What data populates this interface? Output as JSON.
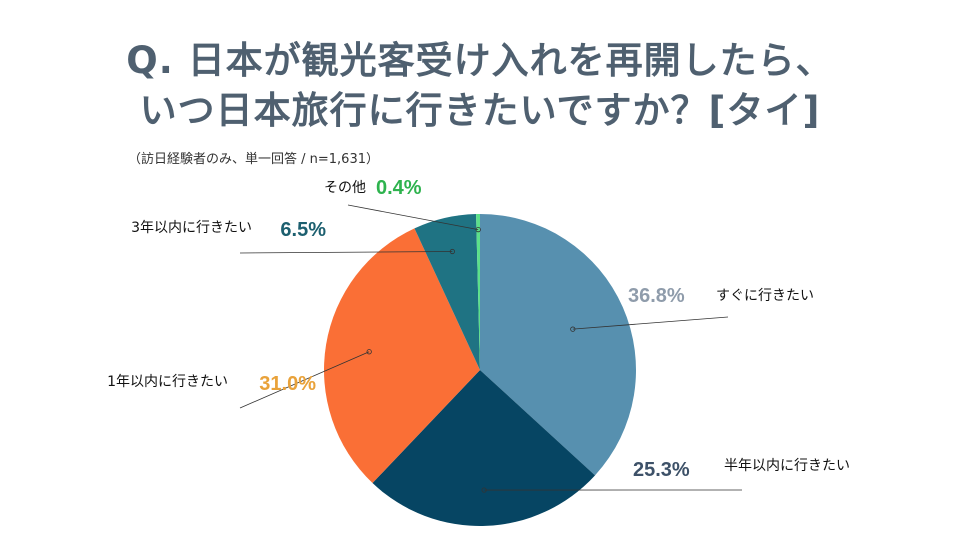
{
  "title": {
    "line1": "Q. 日本が観光客受け入れを再開したら、",
    "line2": "いつ日本旅行に行きたいですか？[タイ]"
  },
  "subtitle": "（訪日経験者のみ、単一回答 / n=1,631）",
  "chart_data": {
    "type": "pie",
    "start": "12 o'clock",
    "direction": "clockwise",
    "slices": [
      {
        "label": "すぐに行きたい",
        "value": 36.8,
        "value_text": "36.8%",
        "color": "#5790af",
        "value_color": "#8f9cab"
      },
      {
        "label": "半年以内に行きたい",
        "value": 25.3,
        "value_text": "25.3%",
        "color": "#064563",
        "value_color": "#3d5168"
      },
      {
        "label": "1年以内に行きたい",
        "value": 31.0,
        "value_text": "31.0%",
        "color": "#fa6f36",
        "value_color": "#e9a23a"
      },
      {
        "label": "3年以内に行きたい",
        "value": 6.5,
        "value_text": "6.5%",
        "color": "#1f7383",
        "value_color": "#1c5f6f"
      },
      {
        "label": "その他",
        "value": 0.4,
        "value_text": "0.4%",
        "color": "#5ce08a",
        "value_color": "#2eb34e"
      }
    ]
  }
}
